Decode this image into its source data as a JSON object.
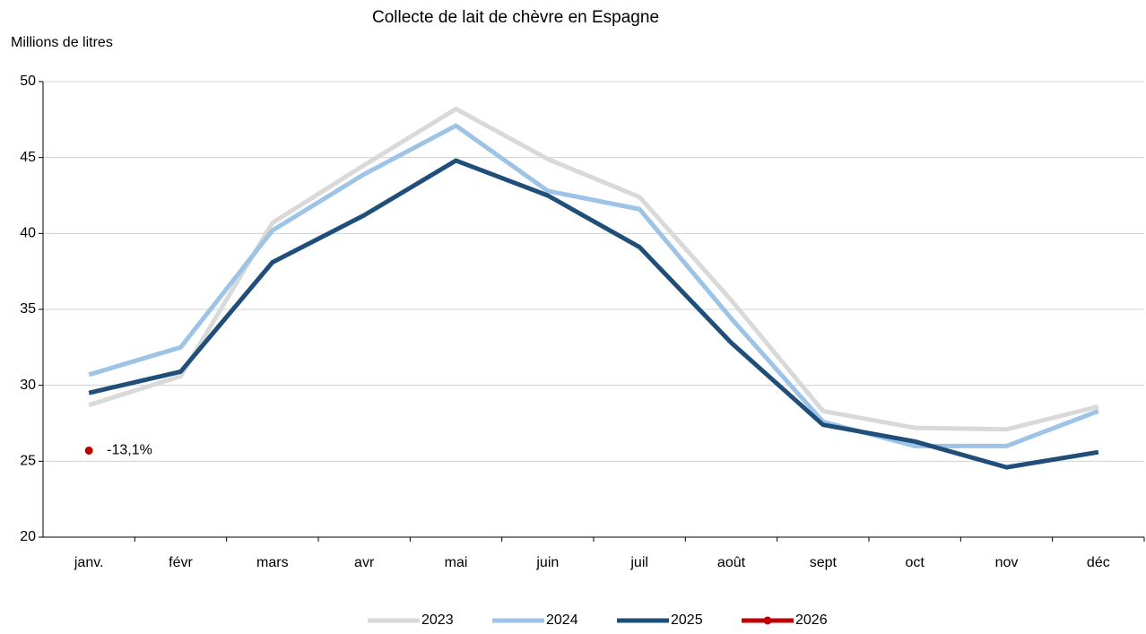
{
  "chart_data": {
    "type": "line",
    "title": "Collecte de lait de chèvre en Espagne",
    "y_label": "Millions de litres",
    "categories": [
      "janv.",
      "févr",
      "mars",
      "avr",
      "mai",
      "juin",
      "juil",
      "août",
      "sept",
      "oct",
      "nov",
      "déc"
    ],
    "series": [
      {
        "name": "2023",
        "color": "#d9d9d9",
        "values": [
          28.7,
          30.6,
          40.7,
          44.5,
          48.2,
          44.9,
          42.4,
          35.6,
          28.3,
          27.2,
          27.1,
          28.6
        ]
      },
      {
        "name": "2024",
        "color": "#9dc3e6",
        "values": [
          30.7,
          32.5,
          40.2,
          43.9,
          47.1,
          42.8,
          41.6,
          34.4,
          27.6,
          26.0,
          26.0,
          28.3
        ]
      },
      {
        "name": "2025",
        "color": "#1f4e79",
        "values": [
          29.5,
          30.9,
          38.1,
          41.2,
          44.8,
          42.5,
          39.1,
          32.8,
          27.4,
          26.3,
          24.6,
          25.6
        ]
      },
      {
        "name": "2026",
        "color": "#c00000",
        "marker": true,
        "values": [
          25.7,
          null,
          null,
          null,
          null,
          null,
          null,
          null,
          null,
          null,
          null,
          null
        ]
      }
    ],
    "annotations": [
      "-13,1%"
    ],
    "ylim": [
      20,
      50
    ],
    "yticks": [
      20,
      25,
      30,
      35,
      40,
      45,
      50
    ],
    "grid": true,
    "legend": "bottom"
  }
}
